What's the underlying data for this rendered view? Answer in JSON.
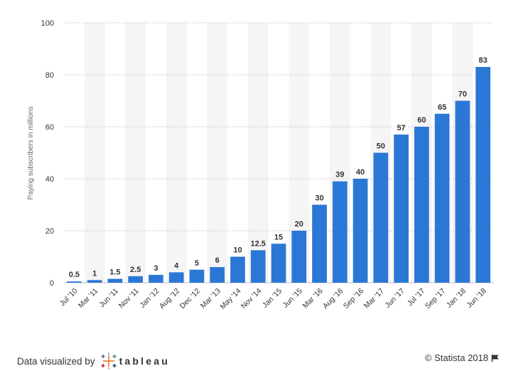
{
  "chart_data": {
    "type": "bar",
    "categories": [
      "Jul '10",
      "Mar '11",
      "Jun '11",
      "Nov '11",
      "Jan '12",
      "Aug '12",
      "Dec '12",
      "Mar '13",
      "May '14",
      "Nov '14",
      "Jan '15",
      "Jun '15",
      "Mar '16",
      "Aug '16",
      "Sep '16",
      "Mar '17",
      "Jun '17",
      "Jul '17",
      "Sep '17",
      "Jan '18",
      "Jun '18"
    ],
    "values": [
      0.5,
      1,
      1.5,
      2.5,
      3,
      4,
      5,
      6,
      10,
      12.5,
      15,
      20,
      30,
      39,
      40,
      50,
      57,
      60,
      65,
      70,
      83
    ],
    "value_labels": [
      "0.5",
      "1",
      "1.5",
      "2.5",
      "3",
      "4",
      "5",
      "6",
      "10",
      "12.5",
      "15",
      "20",
      "30",
      "39",
      "40",
      "50",
      "57",
      "60",
      "65",
      "70",
      "83"
    ],
    "ylabel": "Paying subscribers in millions",
    "xlabel": "",
    "ylim": [
      0,
      100
    ],
    "yticks": [
      0,
      20,
      40,
      60,
      80,
      100
    ],
    "grid": true,
    "bar_color": "#2b77d6",
    "band_color": "#f5f5f5"
  },
  "footer": {
    "credit_text": "Data visualized by",
    "credit_brand": "tableau",
    "copyright": "© Statista 2018",
    "icons": [
      "tableau-logo-icon",
      "flag-icon"
    ]
  }
}
